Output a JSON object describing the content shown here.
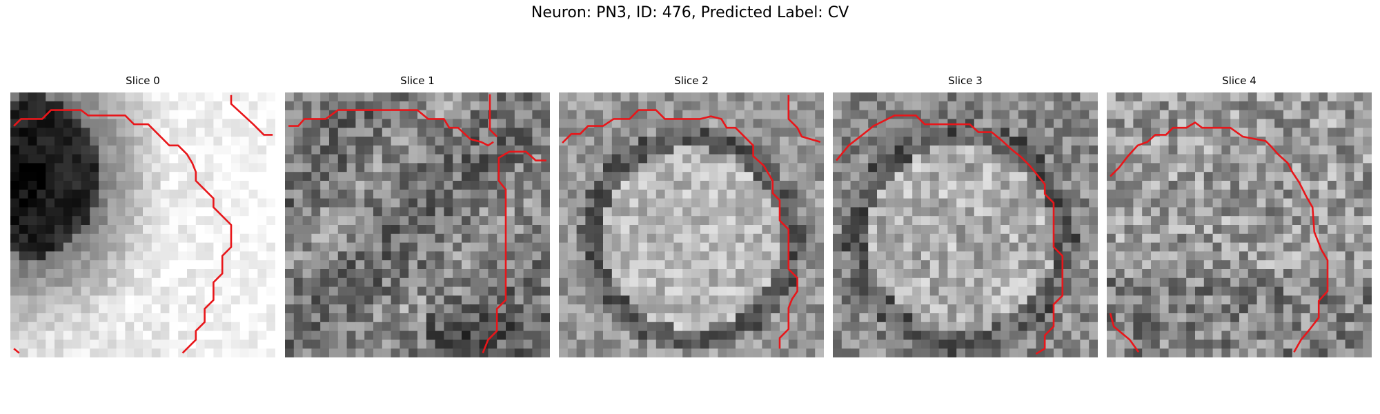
{
  "figure": {
    "title": "Neuron: PN3, ID: 476, Predicted Label: CV"
  },
  "panels": [
    {
      "title": "Slice 0"
    },
    {
      "title": "Slice 1"
    },
    {
      "title": "Slice 2"
    },
    {
      "title": "Slice 3"
    },
    {
      "title": "Slice 4"
    }
  ],
  "colors": {
    "contour": "#e8161a",
    "background": "#ffffff"
  }
}
